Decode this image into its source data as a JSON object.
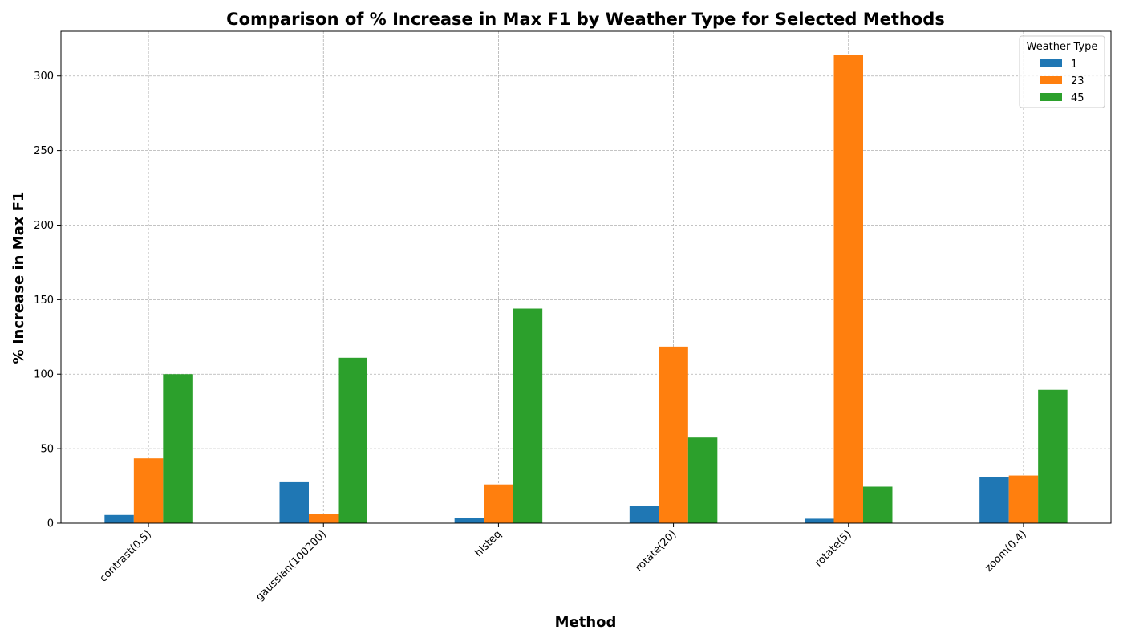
{
  "chart_data": {
    "type": "bar",
    "title": "Comparison of % Increase in Max F1 by Weather Type for Selected Methods",
    "xlabel": "Method",
    "ylabel": "% Increase in Max F1",
    "categories": [
      "contrast(0.5)",
      "gaussian(100200)",
      "histeq",
      "rotate(20)",
      "rotate(5)",
      "zoom(0.4)"
    ],
    "series": [
      {
        "name": "1",
        "color": "#1f77b4",
        "values": [
          5.5,
          27.5,
          3.5,
          11.5,
          3.0,
          31.0
        ]
      },
      {
        "name": "23",
        "color": "#ff7f0e",
        "values": [
          43.5,
          6.0,
          26.0,
          118.5,
          314.0,
          32.0
        ]
      },
      {
        "name": "45",
        "color": "#2ca02c",
        "values": [
          100.0,
          111.0,
          144.0,
          57.5,
          24.5,
          89.5
        ]
      }
    ],
    "ylim": [
      0,
      330
    ],
    "yticks": [
      0,
      50,
      100,
      150,
      200,
      250,
      300
    ],
    "grid": true,
    "legend": {
      "title": "Weather Type",
      "position": "top-right"
    }
  }
}
